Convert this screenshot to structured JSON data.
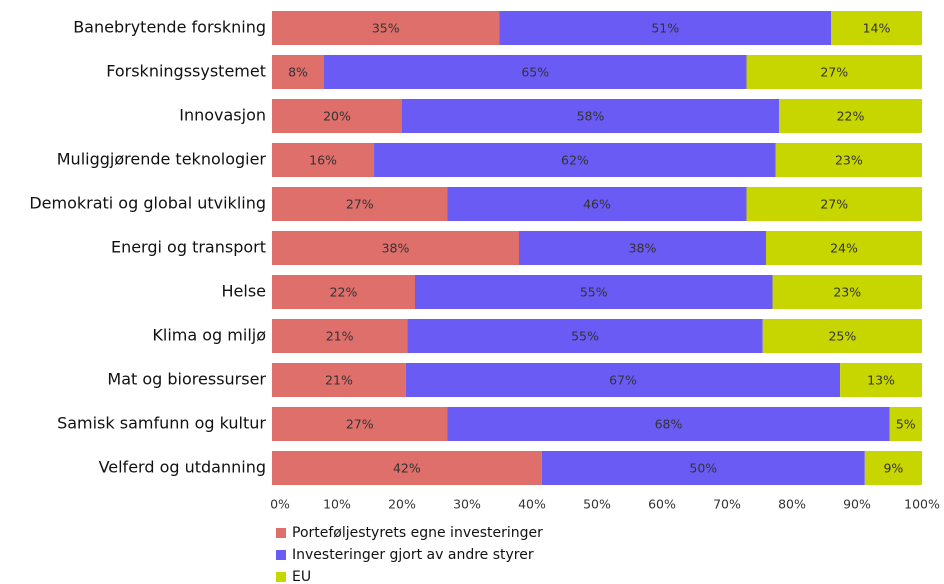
{
  "chart_data": {
    "type": "stacked_bar_horizontal",
    "categories": [
      "Banebrytende forskning",
      "Forskningssystemet",
      "Innovasjon",
      "Muliggjørende teknologier",
      "Demokrati og global utvikling",
      "Energi og transport",
      "Helse",
      "Klima og miljø",
      "Mat og bioressurser",
      "Samisk samfunn og kultur",
      "Velferd og utdanning"
    ],
    "series": [
      {
        "name": "Porteføljestyrets egne investeringer",
        "color": "#de6f6b",
        "values": [
          35,
          8,
          20,
          15.7,
          27,
          38,
          22,
          20.8,
          20.6,
          27,
          41.5
        ],
        "value_labels": [
          "35%",
          "8%",
          "20%",
          "16%",
          "27%",
          "38%",
          "22%",
          "21%",
          "21%",
          "27%",
          "42%"
        ]
      },
      {
        "name": "Investeringer gjort av andre styrer",
        "color": "#6b5bf5",
        "values": [
          51,
          65,
          58,
          61.8,
          46,
          38,
          55,
          54.7,
          66.8,
          68,
          49.7
        ],
        "value_labels": [
          "51%",
          "65%",
          "58%",
          "62%",
          "46%",
          "38%",
          "55%",
          "55%",
          "67%",
          "68%",
          "50%"
        ]
      },
      {
        "name": "EU",
        "color": "#c8d600",
        "values": [
          14,
          27,
          22,
          22.5,
          27,
          24,
          23,
          24.5,
          12.6,
          5,
          8.8
        ],
        "value_labels": [
          "14%",
          "27%",
          "22%",
          "23%",
          "27%",
          "24%",
          "23%",
          "25%",
          "13%",
          "5%",
          "9%"
        ]
      }
    ],
    "xlim": [
      0,
      100
    ],
    "xticks": [
      {
        "value": 0,
        "label": "0%"
      },
      {
        "value": 10,
        "label": "10%"
      },
      {
        "value": 20,
        "label": "20%"
      },
      {
        "value": 30,
        "label": "30%"
      },
      {
        "value": 40,
        "label": "40%"
      },
      {
        "value": 50,
        "label": "50%"
      },
      {
        "value": 60,
        "label": "60%"
      },
      {
        "value": 70,
        "label": "70%"
      },
      {
        "value": 80,
        "label": "80%"
      },
      {
        "value": 90,
        "label": "90%"
      },
      {
        "value": 100,
        "label": "100%"
      }
    ],
    "grid": false,
    "legend": "bottom-left"
  }
}
